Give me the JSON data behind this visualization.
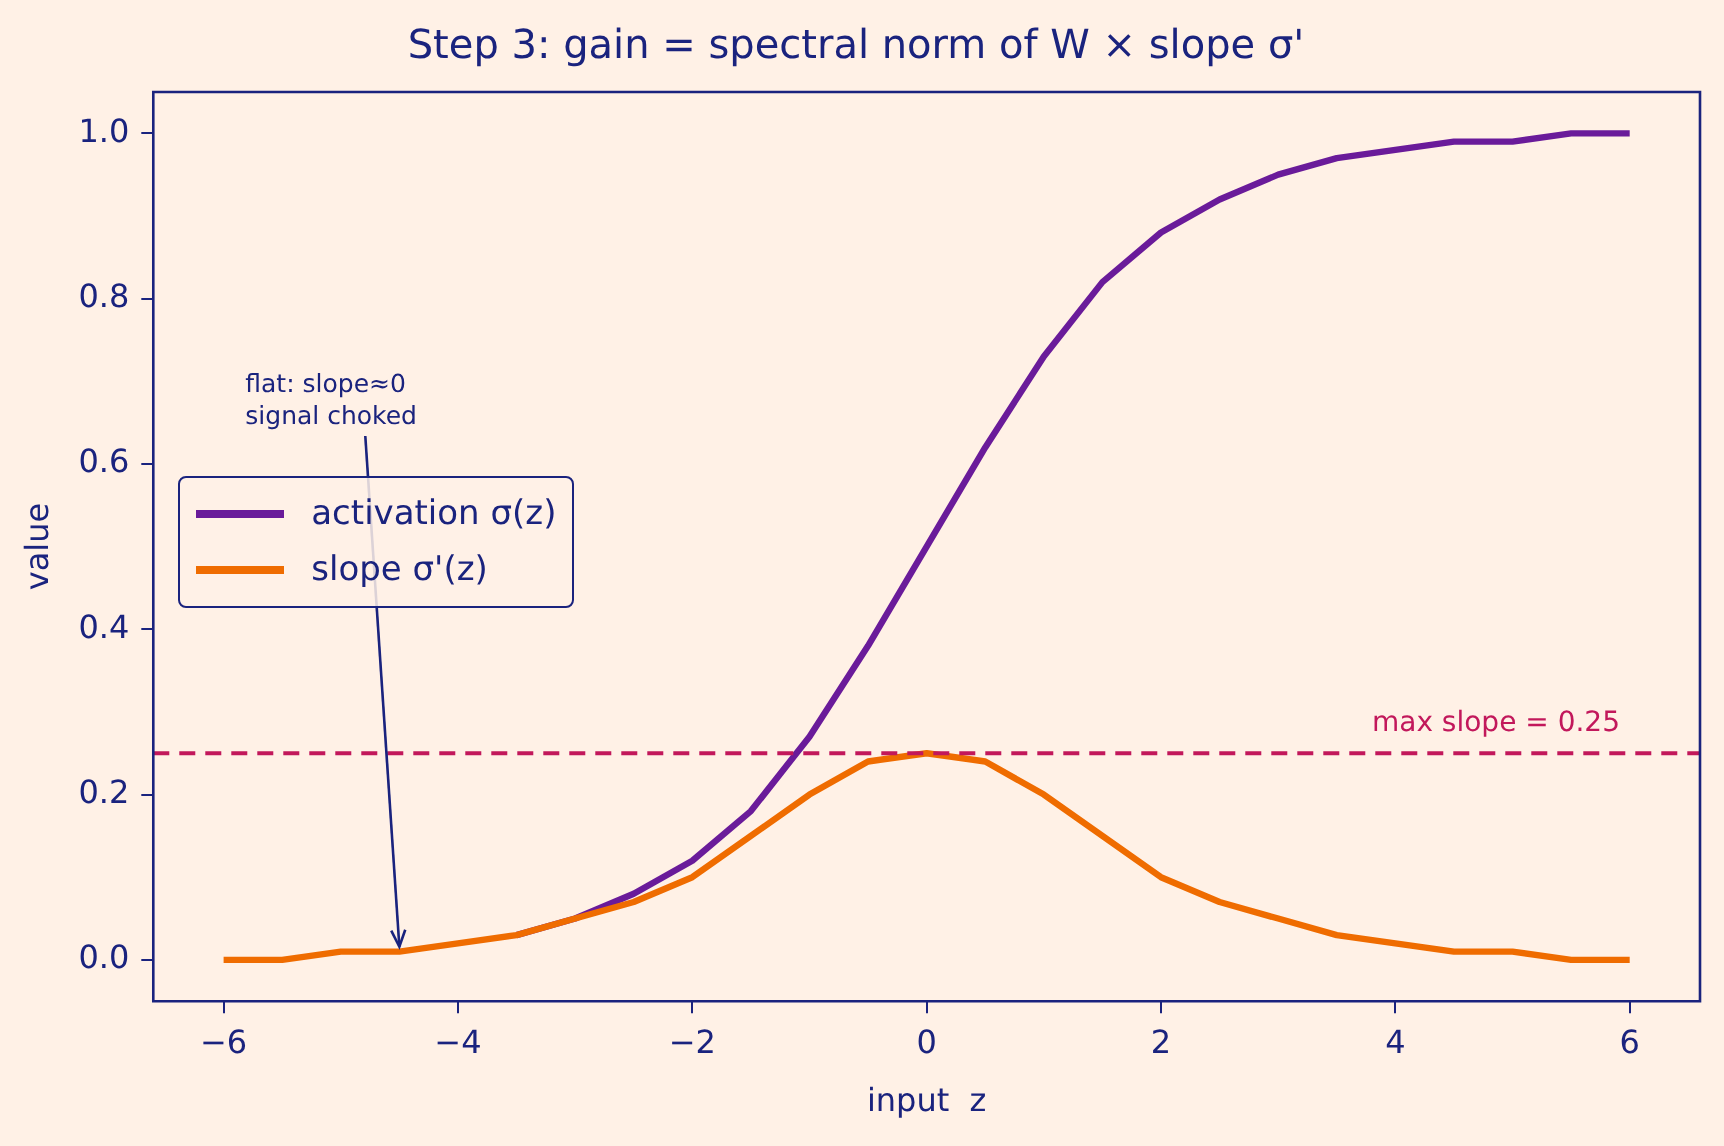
{
  "chart_data": {
    "type": "line",
    "title": "Step 3: gain = spectral norm of W × slope σ'",
    "xlabel": "input  z",
    "ylabel": "value",
    "x": [
      -6,
      -5.5,
      -5,
      -4.5,
      -4,
      -3.5,
      -3,
      -2.5,
      -2,
      -1.5,
      -1,
      -0.5,
      0,
      0.5,
      1,
      1.5,
      2,
      2.5,
      3,
      3.5,
      4,
      4.5,
      5,
      5.5,
      6
    ],
    "series": [
      {
        "name": "activation σ(z)",
        "color": "#6a1b9a",
        "values": [
          null,
          null,
          null,
          null,
          null,
          0.03,
          0.05,
          0.08,
          0.12,
          0.18,
          0.27,
          0.38,
          0.5,
          0.62,
          0.73,
          0.82,
          0.88,
          0.92,
          0.95,
          0.97,
          0.98,
          0.99,
          0.99,
          1.0,
          1.0
        ]
      },
      {
        "name": "slope σ'(z)",
        "color": "#ef6c00",
        "values": [
          0.0,
          0.0,
          0.01,
          0.01,
          0.02,
          0.03,
          0.05,
          0.07,
          0.1,
          0.15,
          0.2,
          0.24,
          0.25,
          0.24,
          0.2,
          0.15,
          0.1,
          0.07,
          0.05,
          0.03,
          0.02,
          0.01,
          0.01,
          0.0,
          0.0
        ]
      }
    ],
    "xlim": [
      -6.6,
      6.6
    ],
    "xticks": [
      {
        "value": -6,
        "label": "−6"
      },
      {
        "value": -4,
        "label": "−4"
      },
      {
        "value": -2,
        "label": "−2"
      },
      0,
      2,
      4,
      6
    ],
    "ylim": [
      -0.05,
      1.05
    ],
    "yticks": [
      {
        "value": 0,
        "label": "0.0"
      },
      {
        "value": 0.2,
        "label": "0.2"
      },
      {
        "value": 0.4,
        "label": "0.4"
      },
      {
        "value": 0.6,
        "label": "0.6"
      },
      {
        "value": 0.8,
        "label": "0.8"
      },
      {
        "value": 1,
        "label": "1.0"
      }
    ],
    "ref_lines": [
      {
        "axis": "y",
        "value": 0.25,
        "label": "max slope = 0.25",
        "color": "#c2185b",
        "line_style": "dashed"
      }
    ],
    "annotations": [
      {
        "text": "flat: slope≈0\nsignal choked",
        "x": -4.5,
        "y": 0.011
      }
    ],
    "grid": false,
    "legend": "center left",
    "marker": "none",
    "line_style": "solid"
  }
}
